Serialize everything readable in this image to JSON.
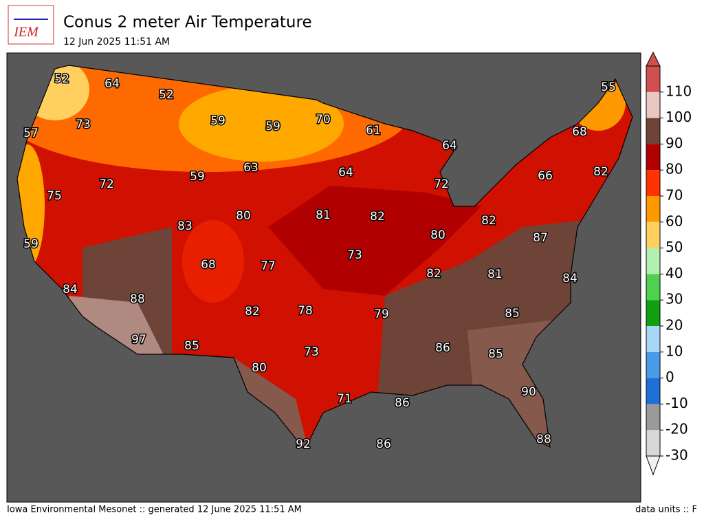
{
  "logo_text": "IEM",
  "title": "Conus 2 meter Air Temperature",
  "subtitle": "12 Jun 2025 11:51 AM",
  "footer_left": "Iowa Environmental Mesonet :: generated 12 June 2025 11:51 AM",
  "footer_right": "data units :: F",
  "labels": [
    52,
    64,
    52,
    55,
    57,
    73,
    59,
    59,
    70,
    61,
    68,
    64,
    63,
    59,
    64,
    82,
    66,
    72,
    72,
    75,
    80,
    81,
    82,
    82,
    83,
    80,
    87,
    59,
    73,
    68,
    77,
    82,
    81,
    84,
    84,
    88,
    82,
    78,
    79,
    85,
    97,
    85,
    86,
    85,
    73,
    80,
    90,
    71,
    86,
    88,
    92,
    86
  ],
  "colorbar": {
    "lim": [
      -30,
      120
    ],
    "ticks": [
      -30,
      -20,
      -10,
      0,
      10,
      20,
      30,
      40,
      50,
      60,
      70,
      80,
      90,
      100,
      110
    ],
    "colors": [
      "#d8d8d8",
      "#9a9a9a",
      "#1e6fd6",
      "#4a9ae8",
      "#a8d8f8",
      "#10a010",
      "#50d050",
      "#b0f0b0",
      "#ffd060",
      "#ff9900",
      "#ff3300",
      "#b00000",
      "#6e4438",
      "#e8c8c0",
      "#d05050"
    ]
  }
}
